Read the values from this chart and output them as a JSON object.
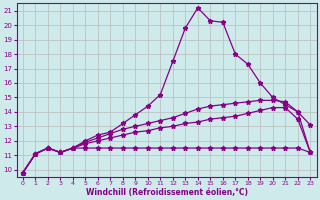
{
  "x": [
    0,
    1,
    2,
    3,
    4,
    5,
    6,
    7,
    8,
    9,
    10,
    11,
    12,
    13,
    14,
    15,
    16,
    17,
    18,
    19,
    20,
    21,
    22,
    23
  ],
  "line1": [
    9.8,
    11.1,
    11.5,
    11.2,
    11.5,
    12.0,
    12.4,
    12.6,
    13.2,
    13.8,
    14.4,
    15.2,
    17.5,
    19.8,
    21.2,
    20.3,
    20.2,
    18.0,
    17.3,
    16.0,
    15.0,
    14.5,
    14.0,
    13.1
  ],
  "line2": [
    9.8,
    11.1,
    11.5,
    11.2,
    11.5,
    11.9,
    12.2,
    12.5,
    12.8,
    13.0,
    13.2,
    13.4,
    13.6,
    13.9,
    14.2,
    14.4,
    14.5,
    14.6,
    14.7,
    14.8,
    14.8,
    14.7,
    14.0,
    11.2
  ],
  "line3": [
    9.8,
    11.1,
    11.5,
    11.2,
    11.5,
    11.8,
    12.0,
    12.2,
    12.4,
    12.6,
    12.7,
    12.9,
    13.0,
    13.2,
    13.3,
    13.5,
    13.6,
    13.7,
    13.9,
    14.1,
    14.3,
    14.3,
    13.5,
    11.2
  ],
  "line4": [
    9.8,
    11.1,
    11.5,
    11.2,
    11.5,
    11.5,
    11.5,
    11.5,
    11.5,
    11.5,
    11.5,
    11.5,
    11.5,
    11.5,
    11.5,
    11.5,
    11.5,
    11.5,
    11.5,
    11.5,
    11.5,
    11.5,
    11.5,
    11.2
  ],
  "color": "#880088",
  "bg_color": "#ceeaea",
  "grid_color": "#bbbbbb",
  "xlabel": "Windchill (Refroidissement éolien,°C)",
  "ylim": [
    9.5,
    21.5
  ],
  "xlim": [
    -0.5,
    23.5
  ],
  "yticks": [
    10,
    11,
    12,
    13,
    14,
    15,
    16,
    17,
    18,
    19,
    20,
    21
  ],
  "xticks": [
    0,
    1,
    2,
    3,
    4,
    5,
    6,
    7,
    8,
    9,
    10,
    11,
    12,
    13,
    14,
    15,
    16,
    17,
    18,
    19,
    20,
    21,
    22,
    23
  ]
}
